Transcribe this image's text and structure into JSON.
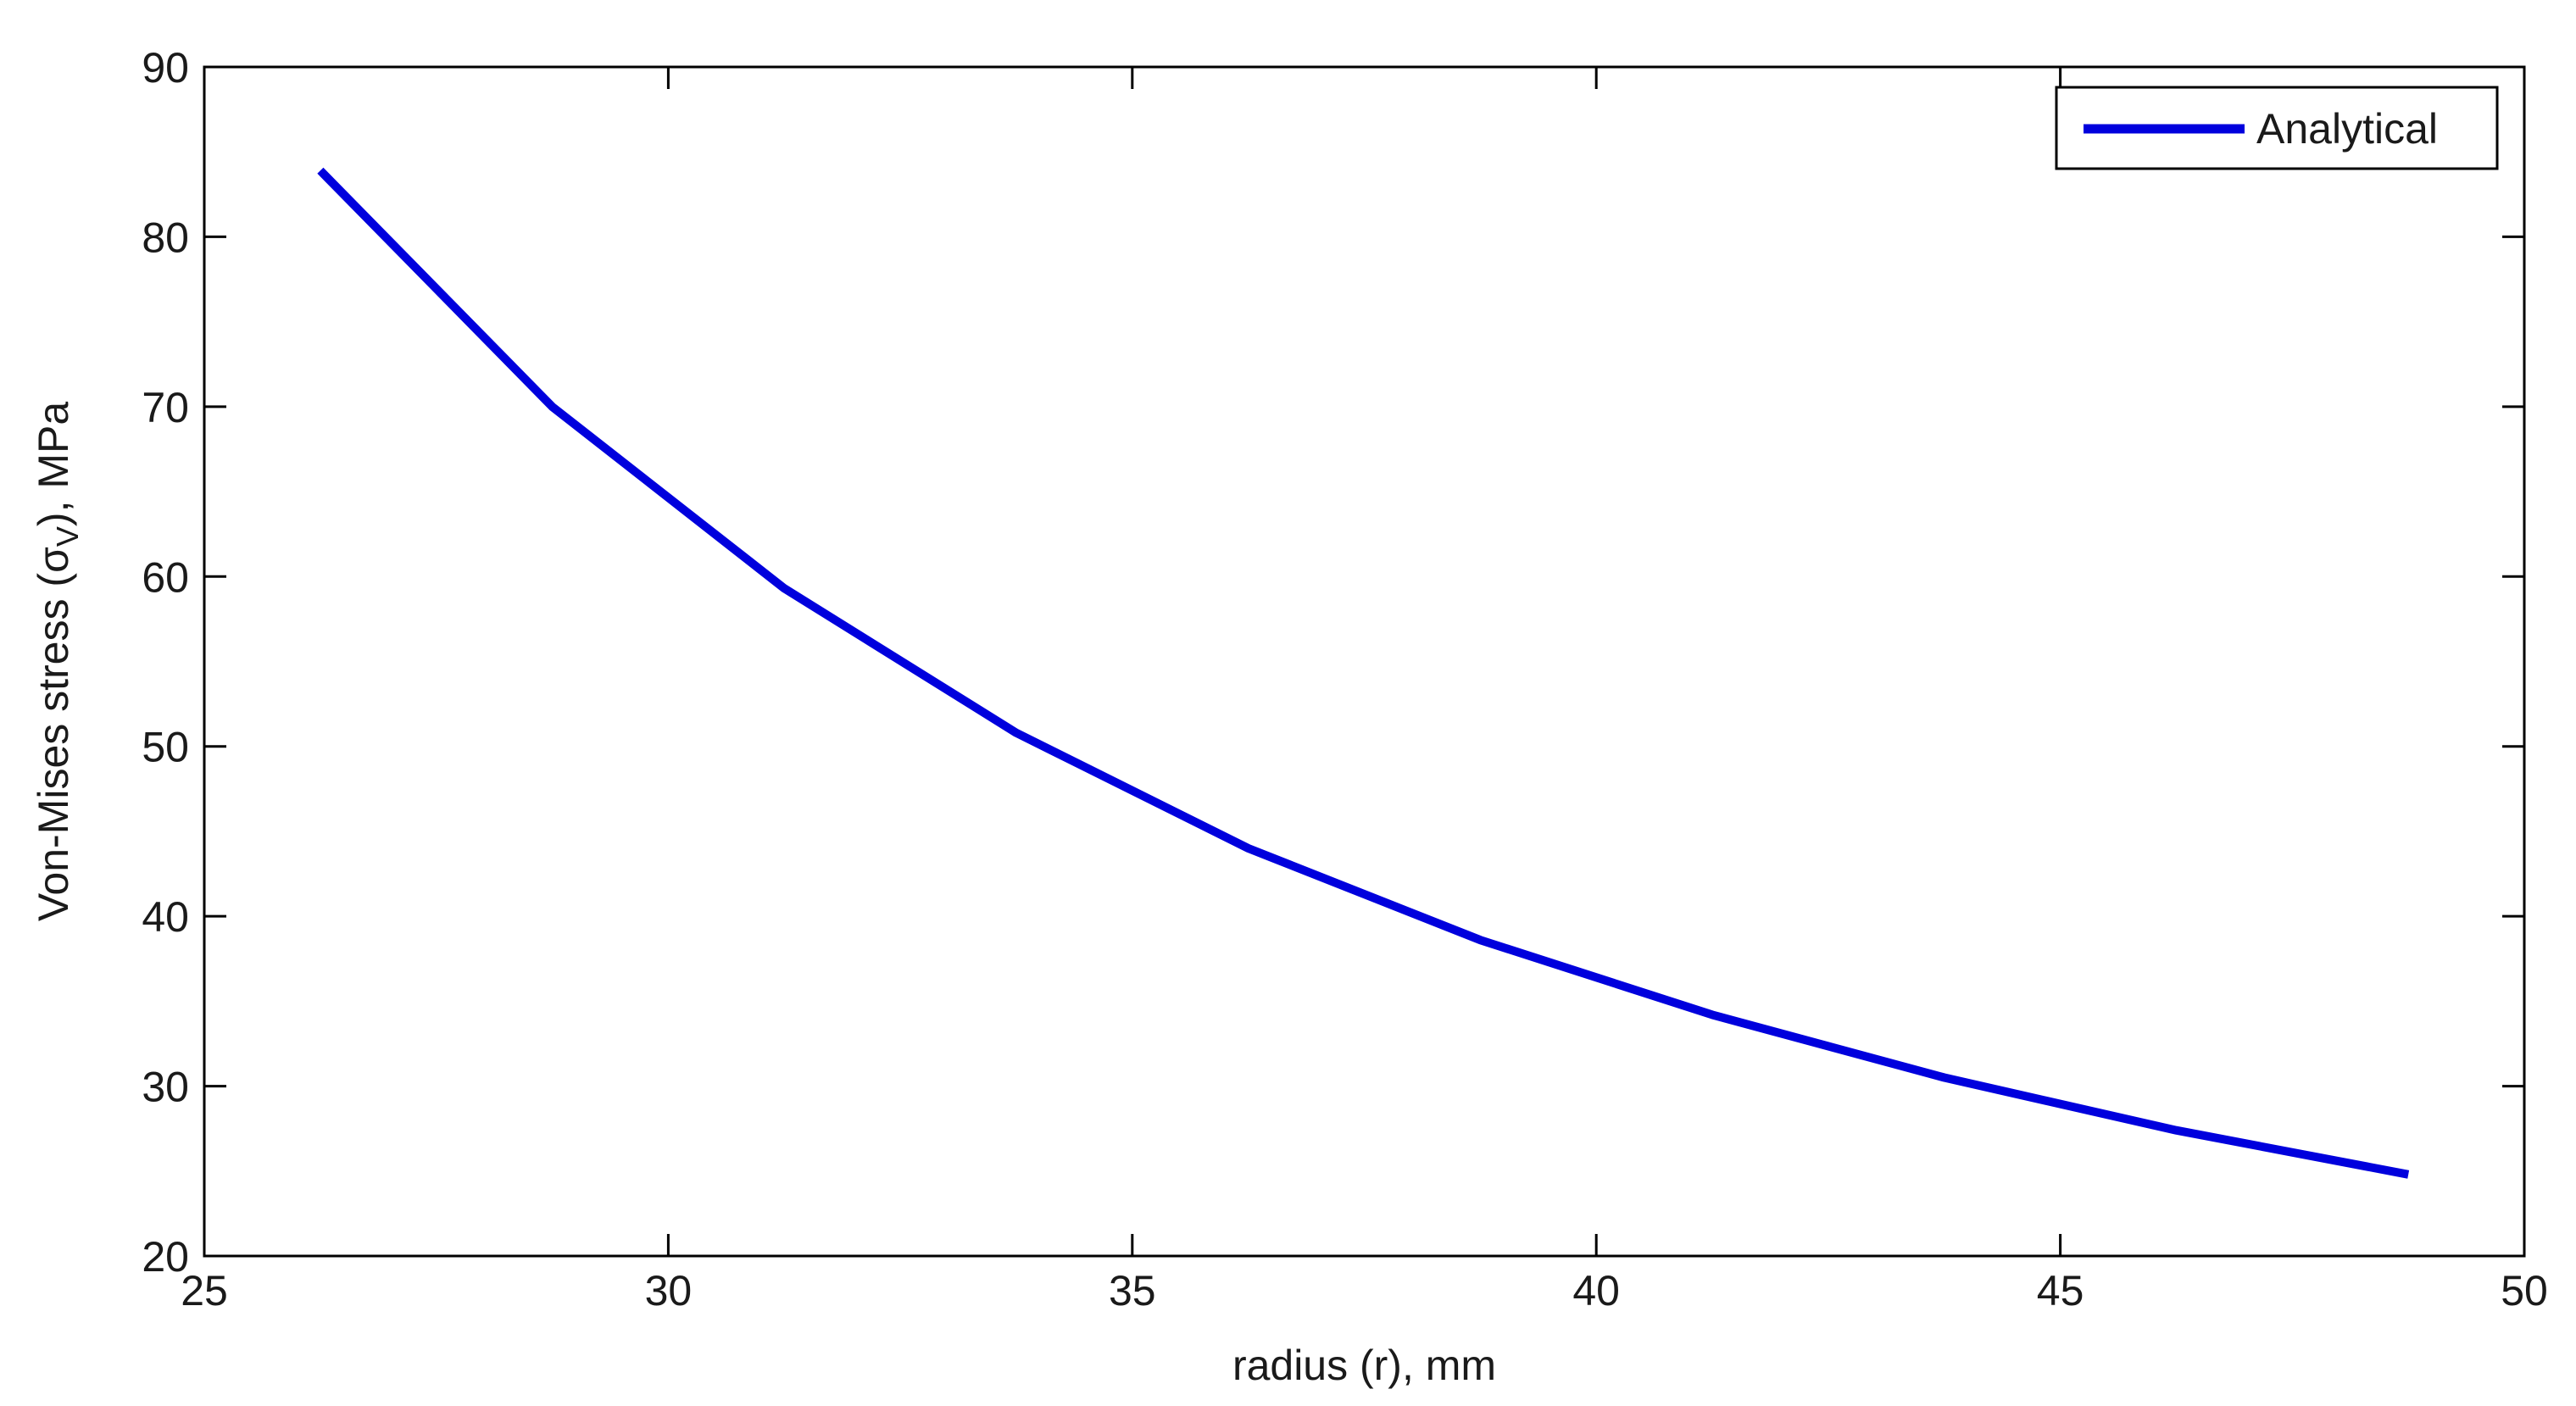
{
  "chart_data": {
    "type": "line",
    "xlabel": "radius (r), mm",
    "ylabel": {
      "pre": "Von-Mises stress (σ",
      "sub": "V",
      "post": "), MPa"
    },
    "xlim": [
      25,
      50
    ],
    "ylim": [
      20,
      90
    ],
    "xticks": [
      25,
      30,
      35,
      40,
      45,
      50
    ],
    "yticks": [
      20,
      30,
      40,
      50,
      60,
      70,
      80,
      90
    ],
    "grid": false,
    "legend_position": "top-right",
    "series": [
      {
        "name": "Analytical",
        "color": "#0000dd",
        "x": [
          26.25,
          28.75,
          31.25,
          33.75,
          36.25,
          38.75,
          41.25,
          43.75,
          46.25,
          48.75
        ],
        "y": [
          83.9,
          70.0,
          59.3,
          50.8,
          44.0,
          38.6,
          34.2,
          30.5,
          27.4,
          24.8
        ]
      }
    ]
  }
}
